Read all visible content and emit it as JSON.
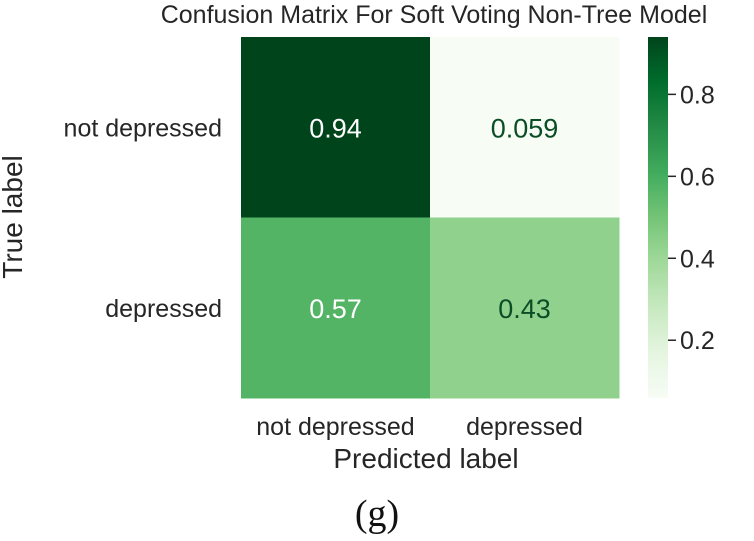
{
  "chart_data": {
    "type": "heatmap",
    "title": "Confusion Matrix For Soft Voting Non-Tree Model",
    "xlabel": "Predicted label",
    "ylabel": "True label",
    "x_categories": [
      "not depressed",
      "depressed"
    ],
    "y_categories": [
      "not depressed",
      "depressed"
    ],
    "values": [
      [
        0.94,
        0.059
      ],
      [
        0.57,
        0.43
      ]
    ],
    "value_labels": [
      [
        "0.94",
        "0.059"
      ],
      [
        "0.57",
        "0.43"
      ]
    ],
    "colormap": "Greens",
    "colorbar": {
      "range": [
        0.059,
        0.94
      ],
      "ticks": [
        0.2,
        0.4,
        0.6,
        0.8
      ],
      "tick_labels": [
        "0.2",
        "0.4",
        "0.6",
        "0.8"
      ]
    }
  },
  "caption": "(g)",
  "colors": {
    "text": "#262626",
    "annotation_light": "#ffffff",
    "annotation_dark": "#0b4d25"
  }
}
